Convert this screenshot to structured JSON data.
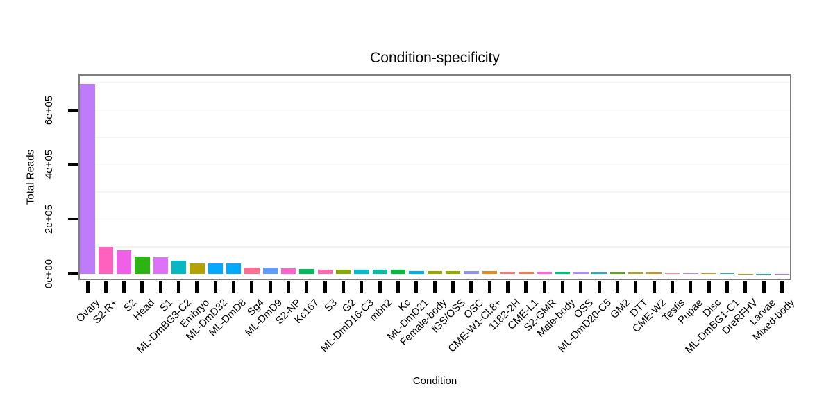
{
  "chart_data": {
    "type": "bar",
    "title": "Condition-specificity",
    "xlabel": "Condition",
    "ylabel": "Total Reads",
    "ylim": [
      0,
      730000
    ],
    "yticks": [
      0,
      200000,
      400000,
      600000
    ],
    "ytick_labels": [
      "0e+00",
      "2e+05",
      "4e+05",
      "6e+05"
    ],
    "grid": "faint horizontal major+minor gridlines, white panel, gray border",
    "legend": "none",
    "x_label_angle": 45,
    "categories": [
      "Ovary",
      "S2-R+",
      "S2",
      "Head",
      "S1",
      "ML-DmBG3-C2",
      "Embryo",
      "ML-DmD32",
      "ML-DmD8",
      "Sg4",
      "ML-DmD9",
      "S2-NP",
      "Kc167",
      "S3",
      "G2",
      "ML-DmD16-C3",
      "mbn2",
      "Kc",
      "ML-DmD21",
      "Female-body",
      "fGS/OSS",
      "OSC",
      "CME-W1-Cl.8+",
      "1182-2H",
      "CME-L1",
      "S2-GMR",
      "Male-body",
      "OSS",
      "ML-DmD20-C5",
      "GM2",
      "DTT",
      "CME-W2",
      "Testis",
      "Pupae",
      "Disc",
      "ML-DmBG1-C1",
      "DreRFHV",
      "Larvae",
      "Mixed-body"
    ],
    "values": [
      695000,
      98000,
      86000,
      64000,
      61000,
      48000,
      38000,
      38000,
      37500,
      23000,
      22000,
      20000,
      17000,
      15000,
      14500,
      14500,
      14000,
      14000,
      11000,
      10500,
      10000,
      9500,
      9000,
      8500,
      8000,
      7600,
      7200,
      6800,
      6200,
      5800,
      5600,
      5400,
      3400,
      3000,
      2400,
      1700,
      700,
      400,
      200
    ],
    "bar_colors": [
      "#BE7CFB",
      "#FF61BF",
      "#EE61E6",
      "#2CB414",
      "#DE71F9",
      "#06B8C4",
      "#B3A200",
      "#02A9FF",
      "#02A9FF",
      "#FF6E91",
      "#619CFF",
      "#FF63CD",
      "#00BA5B",
      "#FF68B1",
      "#84AC00",
      "#00BDD2",
      "#02BFA4",
      "#00BE3C",
      "#00AEF2",
      "#9CA700",
      "#93AC00",
      "#9093F5",
      "#E18A28",
      "#F07D7E",
      "#ED7D50",
      "#FA64DC",
      "#02BE77",
      "#AB8DF8",
      "#09B8E0",
      "#51B300",
      "#BCA100",
      "#DB9100",
      "#F28C90",
      "#D07AF0",
      "#CB9A00",
      "#0FC2C0",
      "#C49A00",
      "#00C1A9",
      "#FF61C7"
    ],
    "minor_grid_values": [
      100000,
      300000,
      500000,
      700000
    ],
    "colors": {
      "panel_border": "#7f7f7f",
      "tick": "#000000",
      "text": "#000000",
      "major_grid": "#FAFAFA",
      "minor_grid": "#F4F4F4",
      "background": "#ffffff"
    }
  }
}
